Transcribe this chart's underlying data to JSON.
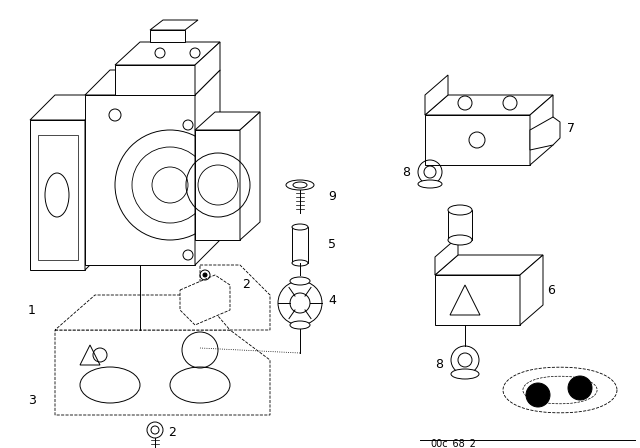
{
  "background_color": "#ffffff",
  "fig_width": 6.4,
  "fig_height": 4.48,
  "dpi": 100,
  "line_color": "#000000",
  "footer_text": "00c_68_2",
  "line_width": 0.7
}
